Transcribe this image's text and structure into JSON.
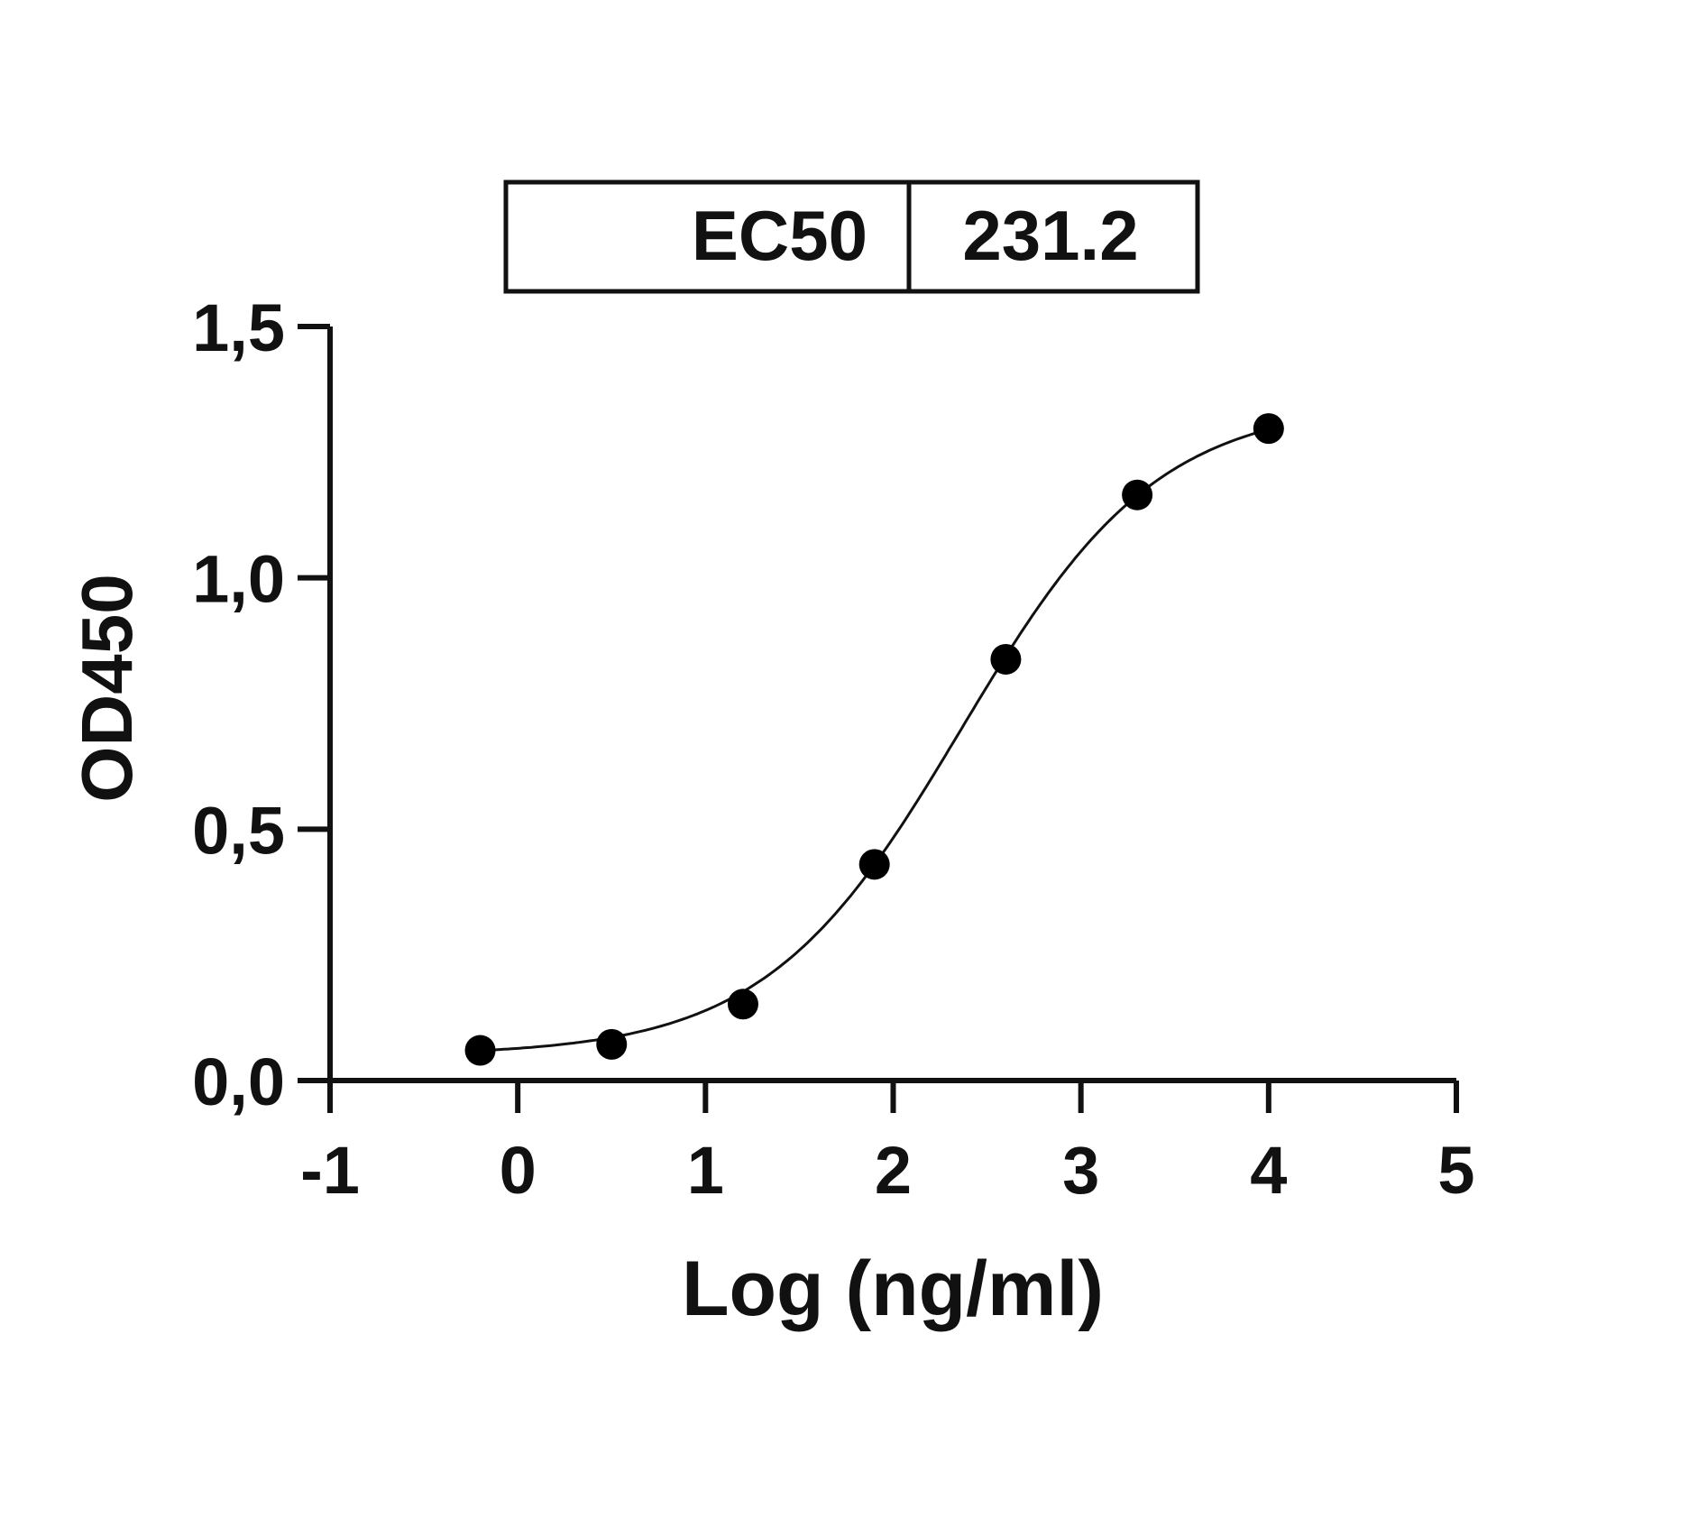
{
  "chart_data": {
    "type": "scatter",
    "xlabel": "Log (ng/ml)",
    "ylabel": "OD450",
    "xlim": [
      -1,
      5
    ],
    "ylim": [
      0,
      1.5
    ],
    "x_ticks": [
      -1,
      0,
      1,
      2,
      3,
      4,
      5
    ],
    "x_tick_labels": [
      "-1",
      "0",
      "1",
      "2",
      "3",
      "4",
      "5"
    ],
    "y_ticks": [
      0,
      0.5,
      1.0,
      1.5
    ],
    "y_tick_labels": [
      "0,0",
      "0,5",
      "1,0",
      "1,5"
    ],
    "grid": false,
    "points": [
      {
        "x": -0.2,
        "y": 0.06
      },
      {
        "x": 0.5,
        "y": 0.072
      },
      {
        "x": 1.2,
        "y": 0.152
      },
      {
        "x": 1.9,
        "y": 0.43
      },
      {
        "x": 2.6,
        "y": 0.838
      },
      {
        "x": 3.3,
        "y": 1.165
      },
      {
        "x": 4.0,
        "y": 1.297
      }
    ],
    "fit": {
      "model": "4PL",
      "bottom": 0.05,
      "top": 1.35,
      "logEC50": 2.364,
      "hill": 0.83
    },
    "legend_table": {
      "label": "EC50",
      "value": "231.2"
    },
    "colors": {
      "points": "#000000",
      "curve": "#000000"
    }
  }
}
